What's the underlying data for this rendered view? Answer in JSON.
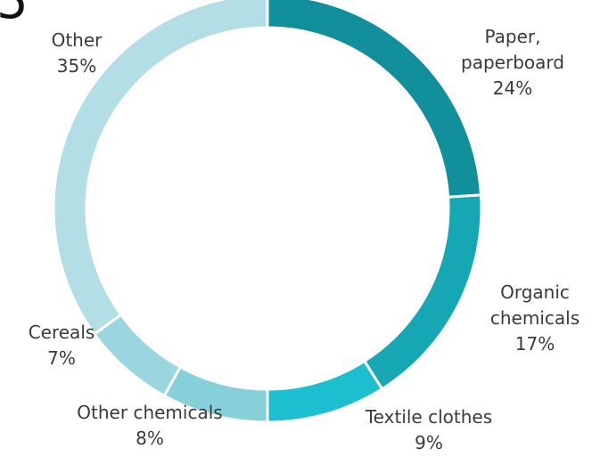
{
  "partial_glyph": "5",
  "chart_data": {
    "type": "pie",
    "donut": true,
    "title": "",
    "categories": [
      "Paper, paperboard",
      "Organic chemicals",
      "Textile clothes",
      "Other chemicals",
      "Cereals",
      "Other"
    ],
    "values": [
      24,
      17,
      9,
      8,
      7,
      35
    ],
    "unit": "%",
    "labels": [
      {
        "lines": [
          "Paper,",
          "paperboard",
          "24%"
        ]
      },
      {
        "lines": [
          "Organic",
          "chemicals",
          "17%"
        ]
      },
      {
        "lines": [
          "Textile clothes",
          "9%"
        ]
      },
      {
        "lines": [
          "Other chemicals",
          "8%"
        ]
      },
      {
        "lines": [
          "Cereals",
          "7%"
        ]
      },
      {
        "lines": [
          "Other",
          "35%"
        ]
      }
    ],
    "colors": [
      "#118f9a",
      "#15a7b4",
      "#1cbfcf",
      "#86d0da",
      "#9ad6df",
      "#b4dee5"
    ],
    "legend": "none"
  }
}
